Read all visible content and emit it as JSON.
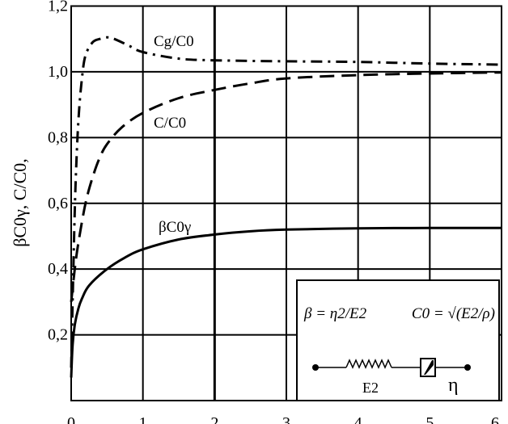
{
  "chart_data": {
    "type": "line",
    "title": "",
    "xlabel": "",
    "ylabel": "βC0γ, C/C0,",
    "xlim": [
      0,
      6
    ],
    "ylim": [
      0,
      1.2
    ],
    "x_ticks": [
      "0",
      "1",
      "2",
      "3",
      "4",
      "5",
      "6"
    ],
    "y_ticks": [
      "0,2",
      "0,4",
      "0,6",
      "0,8",
      "1,0",
      "1,2"
    ],
    "grid": true,
    "series": [
      {
        "name": "Cg/C0",
        "style": "dash-dot",
        "x": [
          0,
          0.03,
          0.06,
          0.1,
          0.15,
          0.2,
          0.3,
          0.4,
          0.5,
          0.6,
          0.8,
          1.0,
          1.5,
          2,
          3,
          4,
          5,
          6
        ],
        "y": [
          0.1,
          0.4,
          0.65,
          0.85,
          0.98,
          1.05,
          1.09,
          1.1,
          1.105,
          1.1,
          1.08,
          1.06,
          1.04,
          1.035,
          1.032,
          1.03,
          1.025,
          1.022
        ]
      },
      {
        "name": "C/C0",
        "style": "dashed",
        "x": [
          0,
          0.05,
          0.1,
          0.2,
          0.3,
          0.4,
          0.5,
          0.7,
          1.0,
          1.5,
          2,
          2.5,
          3,
          4,
          5,
          6
        ],
        "y": [
          0.3,
          0.4,
          0.48,
          0.6,
          0.68,
          0.74,
          0.78,
          0.83,
          0.875,
          0.92,
          0.945,
          0.965,
          0.98,
          0.99,
          0.995,
          0.998
        ]
      },
      {
        "name": "βC0γ",
        "style": "solid",
        "x": [
          0,
          0.02,
          0.05,
          0.1,
          0.15,
          0.25,
          0.5,
          0.75,
          1.0,
          1.5,
          2,
          2.5,
          3,
          4,
          5,
          6
        ],
        "y": [
          0.07,
          0.17,
          0.23,
          0.28,
          0.31,
          0.35,
          0.4,
          0.435,
          0.46,
          0.49,
          0.505,
          0.515,
          0.52,
          0.524,
          0.525,
          0.525
        ]
      }
    ],
    "annotations": [
      "Cg/C0",
      "C/C0",
      "βC0γ"
    ],
    "legend_formula": {
      "beta": "β = η2/E2",
      "c0": "C0 = √(E2/ρ)",
      "spring_label": "E2",
      "dashpot_label": "η"
    }
  }
}
